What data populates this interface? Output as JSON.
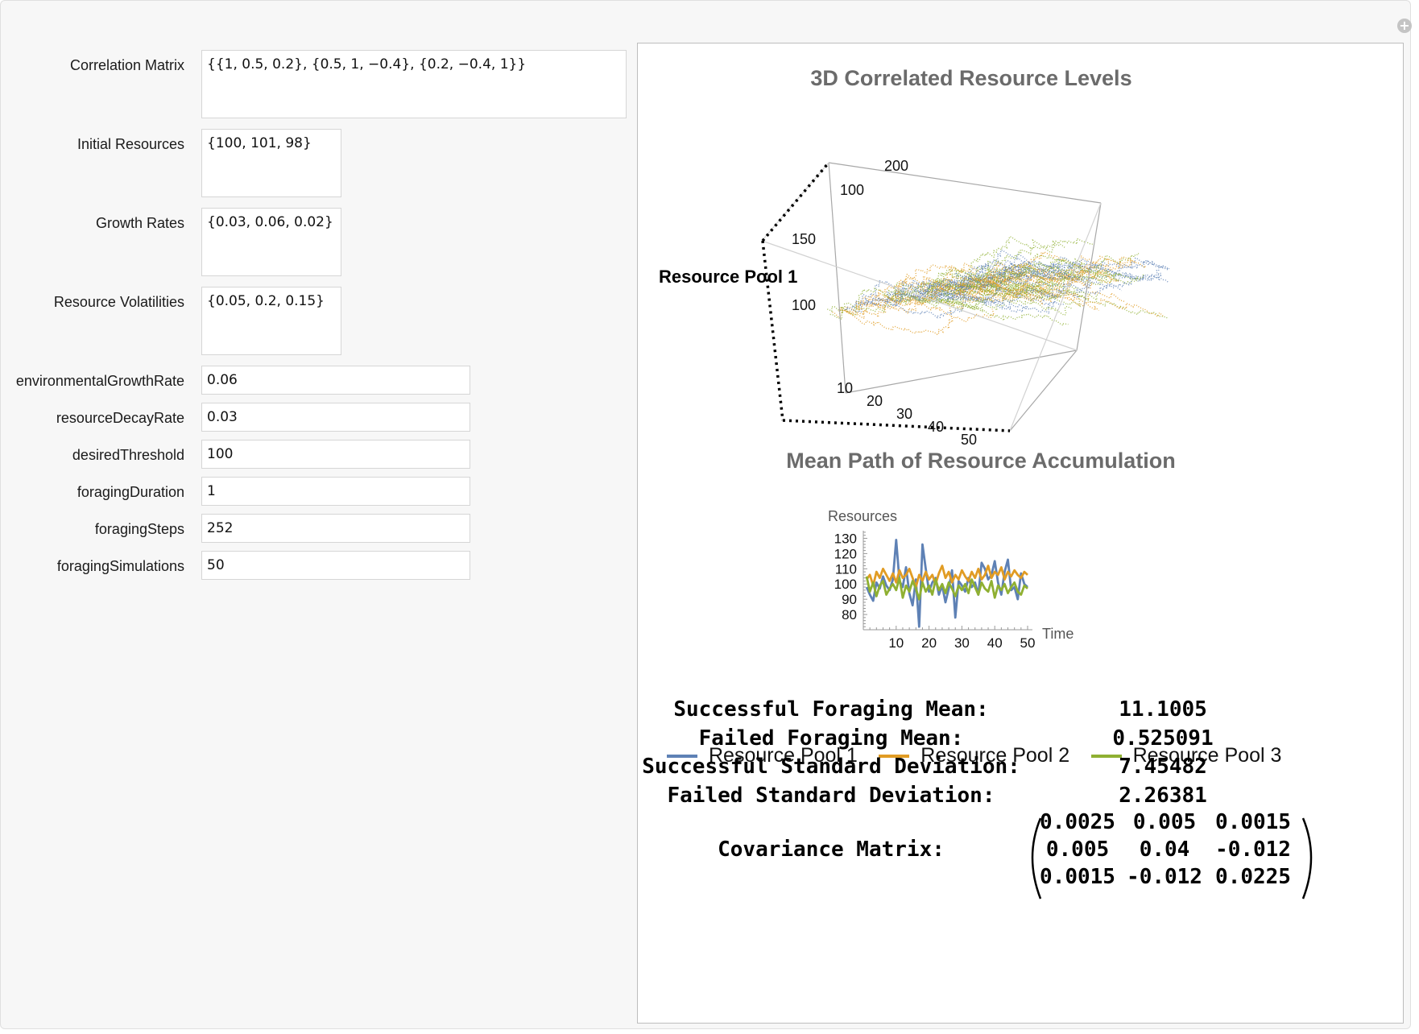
{
  "controls": [
    {
      "label": "Correlation Matrix",
      "value": "{{1, 0.5, 0.2}, {0.5, 1, −0.4}, {0.2, −0.4, 1}}"
    },
    {
      "label": "Initial Resources",
      "value": "{100, 101, 98}"
    },
    {
      "label": "Growth Rates",
      "value": "{0.03, 0.06, 0.02}"
    },
    {
      "label": "Resource Volatilities",
      "value": "{0.05, 0.2, 0.15}"
    },
    {
      "label": "environmentalGrowthRate",
      "value": "0.06"
    },
    {
      "label": "resourceDecayRate",
      "value": "0.03"
    },
    {
      "label": "desiredThreshold",
      "value": "100"
    },
    {
      "label": "foragingDuration",
      "value": "1"
    },
    {
      "label": "foragingSteps",
      "value": "252"
    },
    {
      "label": "foragingSimulations",
      "value": "50"
    }
  ],
  "colors": {
    "pool1": "#5e81b5",
    "pool2": "#e19c24",
    "pool3": "#8fb032"
  },
  "plot3d": {
    "title": "3D Correlated Resource Levels",
    "axis_label": "Resource Pool 1",
    "vertical_ticks": [
      "200",
      "150",
      "100"
    ],
    "depth_ticks": [
      "100"
    ],
    "time_ticks": [
      "10",
      "20",
      "30",
      "40",
      "50"
    ]
  },
  "chart_data": {
    "type": "line",
    "title": "Mean Path of Resource Accumulation",
    "xlabel": "Time",
    "ylabel": "Resources",
    "xlim": [
      0,
      50
    ],
    "ylim": [
      70,
      135
    ],
    "x_ticks": [
      10,
      20,
      30,
      40,
      50
    ],
    "y_ticks": [
      80,
      90,
      100,
      110,
      120,
      130
    ],
    "x": [
      1,
      2,
      3,
      4,
      5,
      6,
      7,
      8,
      9,
      10,
      11,
      12,
      13,
      14,
      15,
      16,
      17,
      18,
      19,
      20,
      21,
      22,
      23,
      24,
      25,
      26,
      27,
      28,
      29,
      30,
      31,
      32,
      33,
      34,
      35,
      36,
      37,
      38,
      39,
      40,
      41,
      42,
      43,
      44,
      45,
      46,
      47,
      48,
      49,
      50
    ],
    "series": [
      {
        "name": "Resource Pool 1",
        "values": [
          98,
          93,
          89,
          101,
          97,
          105,
          99,
          96,
          103,
          129,
          102,
          98,
          111,
          94,
          86,
          103,
          72,
          126,
          110,
          95,
          101,
          104,
          93,
          99,
          88,
          97,
          109,
          78,
          102,
          99,
          95,
          104,
          98,
          101,
          93,
          114,
          110,
          103,
          106,
          115,
          101,
          93,
          108,
          116,
          96,
          98,
          90,
          107,
          100,
          98
        ]
      },
      {
        "name": "Resource Pool 2",
        "values": [
          103,
          106,
          99,
          108,
          104,
          110,
          106,
          102,
          107,
          101,
          109,
          104,
          106,
          110,
          104,
          98,
          106,
          102,
          108,
          103,
          106,
          100,
          107,
          112,
          104,
          108,
          101,
          106,
          103,
          109,
          105,
          102,
          108,
          104,
          110,
          103,
          106,
          112,
          104,
          108,
          106,
          111,
          103,
          108,
          105,
          109,
          106,
          104,
          108,
          106
        ]
      },
      {
        "name": "Resource Pool 3",
        "values": [
          105,
          95,
          101,
          92,
          99,
          102,
          93,
          97,
          100,
          96,
          104,
          91,
          99,
          95,
          102,
          97,
          90,
          101,
          95,
          99,
          93,
          103,
          96,
          100,
          94,
          101,
          97,
          92,
          99,
          96,
          100,
          94,
          103,
          98,
          93,
          101,
          97,
          95,
          102,
          91,
          99,
          96,
          100,
          94,
          98,
          101,
          95,
          93,
          99,
          97
        ]
      }
    ]
  },
  "legend": [
    "Resource Pool 1",
    "Resource Pool 2",
    "Resource Pool 3"
  ],
  "stats": [
    {
      "label": "Successful Foraging Mean:",
      "value": "11.1005"
    },
    {
      "label": "Failed Foraging Mean:",
      "value": "0.525091"
    },
    {
      "label": "Successful Standard Deviation:",
      "value": "7.45482"
    },
    {
      "label": "Failed Standard Deviation:",
      "value": "2.26381"
    }
  ],
  "covariance": {
    "label": "Covariance Matrix:",
    "rows": [
      [
        "0.0025",
        "0.005",
        "0.0015"
      ],
      [
        "0.005",
        "0.04",
        "-0.012"
      ],
      [
        "0.0015",
        "-0.012",
        "0.0225"
      ]
    ]
  }
}
